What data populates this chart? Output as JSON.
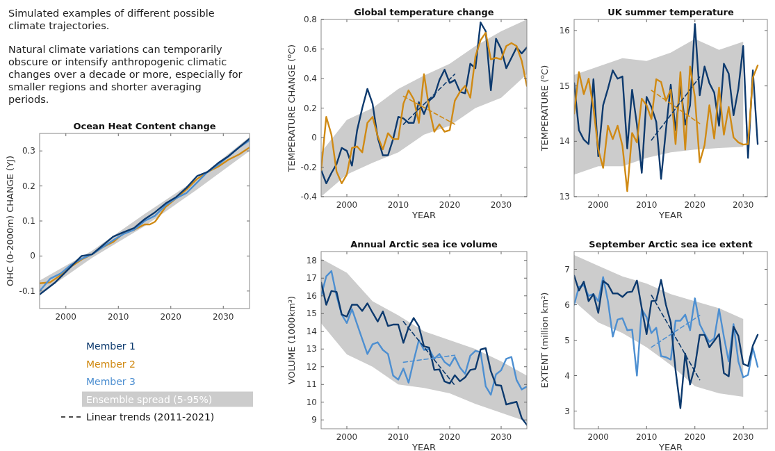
{
  "chart_data": [
    {
      "type": "other",
      "annotations": [
        "Simulated examples of different possible climate trajectories.",
        "Natural climate variations can temporarily obscure or intensify anthropogenic climatic changes over a decade or more, especially for smaller regions and shorter averaging periods."
      ]
    },
    {
      "type": "line",
      "title": "Ocean Heat Content change",
      "ylabel": "OHC (0-2000m) CHANGE  (YJ)",
      "xlim": [
        1995,
        2035
      ],
      "xticks": [
        2000,
        2010,
        2020,
        2030
      ],
      "ylim": [
        -0.15,
        0.35
      ],
      "yticks": [
        -0.1,
        0,
        0.1,
        0.2,
        0.3
      ],
      "line_style": "solid",
      "series": [
        {
          "color": "#cccccc",
          "x": [
            1995,
            2005,
            2015,
            2025,
            2035
          ],
          "values": [
            null,
            null,
            null,
            null,
            null
          ],
          "lower": [
            -0.11,
            -0.005,
            0.085,
            0.19,
            0.3
          ],
          "upper": [
            -0.07,
            0.015,
            0.12,
            0.22,
            0.34
          ]
        },
        {
          "color": "#d08a14",
          "x": [
            1995,
            1997,
            1999,
            2001,
            2003,
            2005,
            2007,
            2009,
            2011,
            2013,
            2015,
            2016,
            2017,
            2019,
            2021,
            2023,
            2025,
            2027,
            2029,
            2031,
            2033,
            2035
          ],
          "values": [
            -0.078,
            -0.075,
            -0.055,
            -0.03,
            -0.01,
            0.005,
            0.025,
            0.04,
            0.065,
            0.075,
            0.09,
            0.09,
            0.098,
            0.14,
            0.165,
            0.19,
            0.22,
            0.24,
            0.255,
            0.275,
            0.29,
            0.31
          ]
        },
        {
          "color": "#4d8fd1",
          "x": [
            1995,
            1997,
            1999,
            2001,
            2003,
            2005,
            2007,
            2009,
            2011,
            2013,
            2015,
            2017,
            2019,
            2021,
            2023,
            2025,
            2027,
            2029,
            2031,
            2033,
            2035
          ],
          "values": [
            -0.1,
            -0.065,
            -0.05,
            -0.025,
            -0.008,
            0.005,
            0.025,
            0.045,
            0.063,
            0.075,
            0.1,
            0.115,
            0.145,
            0.165,
            0.18,
            0.21,
            0.24,
            0.26,
            0.285,
            0.31,
            0.33
          ]
        },
        {
          "color": "#0d3a6e",
          "x": [
            1995,
            1998,
            2000,
            2002,
            2003,
            2005,
            2007,
            2009,
            2011,
            2013,
            2015,
            2017,
            2019,
            2021,
            2023,
            2025,
            2027,
            2029,
            2031,
            2033,
            2035
          ],
          "values": [
            -0.11,
            -0.075,
            -0.045,
            -0.015,
            0.0,
            0.005,
            0.03,
            0.055,
            0.068,
            0.08,
            0.105,
            0.125,
            0.15,
            0.168,
            0.195,
            0.228,
            0.24,
            0.265,
            0.285,
            0.31,
            0.335
          ]
        }
      ]
    },
    {
      "type": "line",
      "title": "Global temperature change",
      "xlabel": "YEAR",
      "ylabel": "TEMPERATURE CHANGE  ($^{o}$C)",
      "xlim": [
        1995,
        2035
      ],
      "xticks": [
        2000,
        2010,
        2020,
        2030
      ],
      "ylim": [
        -0.4,
        0.8
      ],
      "yticks": [
        -0.4,
        -0.2,
        0,
        0.2,
        0.4,
        0.6,
        0.8
      ],
      "line_style": "solid",
      "x": [
        1995,
        1996,
        1997,
        1998,
        1999,
        2000,
        2001,
        2002,
        2003,
        2004,
        2005,
        2006,
        2007,
        2008,
        2009,
        2010,
        2011,
        2012,
        2013,
        2014,
        2015,
        2016,
        2017,
        2018,
        2019,
        2020,
        2021,
        2022,
        2023,
        2024,
        2025,
        2026,
        2027,
        2028,
        2029,
        2030,
        2031,
        2032,
        2033,
        2034,
        2035
      ],
      "series": [
        {
          "color": "#cccccc",
          "x": [
            1995,
            2000,
            2005,
            2010,
            2015,
            2020,
            2025,
            2030,
            2035
          ],
          "values": [
            null,
            null,
            null,
            null,
            null,
            null,
            null,
            null,
            null
          ],
          "lower": [
            -0.4,
            -0.25,
            -0.17,
            -0.1,
            0.02,
            0.08,
            0.2,
            0.27,
            0.43
          ],
          "upper": [
            -0.1,
            0.12,
            0.2,
            0.33,
            0.42,
            0.5,
            0.62,
            0.72,
            0.8
          ]
        },
        {
          "color": "#0d3a6e",
          "values": [
            -0.22,
            -0.31,
            -0.24,
            -0.18,
            -0.07,
            -0.09,
            -0.19,
            0.05,
            0.2,
            0.33,
            0.23,
            0.0,
            -0.12,
            -0.12,
            -0.01,
            0.14,
            0.13,
            0.1,
            0.1,
            0.24,
            0.16,
            0.25,
            0.28,
            0.39,
            0.46,
            0.37,
            0.39,
            0.31,
            0.3,
            0.5,
            0.47,
            0.78,
            0.72,
            0.32,
            0.67,
            0.6,
            0.47,
            0.54,
            0.61,
            0.57,
            0.61
          ]
        },
        {
          "color": "#d08a14",
          "values": [
            -0.22,
            0.14,
            0.02,
            -0.23,
            -0.31,
            -0.25,
            -0.07,
            -0.06,
            -0.1,
            0.1,
            0.14,
            0.01,
            -0.08,
            0.03,
            -0.01,
            -0.01,
            0.23,
            0.32,
            0.26,
            0.1,
            0.43,
            0.2,
            0.04,
            0.09,
            0.04,
            0.05,
            0.25,
            0.31,
            0.35,
            0.27,
            0.55,
            0.66,
            0.71,
            0.53,
            0.54,
            0.53,
            0.62,
            0.64,
            0.62,
            0.52,
            0.35
          ]
        },
        {
          "type": "line",
          "line_style": "dashed",
          "color": "#0d3a6e",
          "x": [
            2011,
            2021
          ],
          "values": [
            0.09,
            0.43
          ]
        },
        {
          "type": "line",
          "line_style": "dashed",
          "color": "#d08a14",
          "x": [
            2011,
            2021
          ],
          "values": [
            0.28,
            0.09
          ]
        }
      ]
    },
    {
      "type": "line",
      "title": "UK summer temperature",
      "xlabel": "YEAR",
      "ylabel": "TEMPERATURE  ($^{o}$C)",
      "xlim": [
        1995,
        2035
      ],
      "xticks": [
        2000,
        2010,
        2020,
        2030
      ],
      "ylim": [
        13,
        16.2
      ],
      "yticks": [
        13,
        14,
        15,
        16
      ],
      "line_style": "solid",
      "x": [
        1995,
        1996,
        1997,
        1998,
        1999,
        2000,
        2001,
        2002,
        2003,
        2004,
        2005,
        2006,
        2007,
        2008,
        2009,
        2010,
        2011,
        2012,
        2013,
        2014,
        2015,
        2016,
        2017,
        2018,
        2019,
        2020,
        2021,
        2022,
        2023,
        2024,
        2025,
        2026,
        2027,
        2028,
        2029,
        2030,
        2031,
        2032,
        2033
      ],
      "series": [
        {
          "color": "#cccccc",
          "x": [
            1995,
            2000,
            2005,
            2010,
            2015,
            2020,
            2025,
            2030
          ],
          "values": [
            null,
            null,
            null,
            null,
            null,
            null,
            null,
            null
          ],
          "lower": [
            13.4,
            13.55,
            13.55,
            13.7,
            13.8,
            13.85,
            13.88,
            13.9
          ],
          "upper": [
            15.2,
            15.35,
            15.5,
            15.45,
            15.6,
            15.85,
            15.65,
            15.8
          ]
        },
        {
          "color": "#0d3a6e",
          "values": [
            15.05,
            14.2,
            14.03,
            13.95,
            15.12,
            13.73,
            14.65,
            14.95,
            15.28,
            15.13,
            15.17,
            13.87,
            14.93,
            14.3,
            13.43,
            14.8,
            14.62,
            14.35,
            13.32,
            14.2,
            15.02,
            14.2,
            15.0,
            14.3,
            14.65,
            16.12,
            14.83,
            15.35,
            15.05,
            14.88,
            14.28,
            15.4,
            15.22,
            14.47,
            14.95,
            15.72,
            13.7,
            15.28,
            13.95
          ]
        },
        {
          "color": "#d08a14",
          "values": [
            14.5,
            15.25,
            14.85,
            15.13,
            14.6,
            13.85,
            13.52,
            14.28,
            14.04,
            14.28,
            13.92,
            13.1,
            14.15,
            13.98,
            14.77,
            14.65,
            14.4,
            15.12,
            15.07,
            14.73,
            14.93,
            13.95,
            15.25,
            13.85,
            15.35,
            14.8,
            13.62,
            13.93,
            14.65,
            14.05,
            14.97,
            14.12,
            14.62,
            14.07,
            13.98,
            13.94,
            13.95,
            15.15,
            15.37
          ]
        },
        {
          "type": "line",
          "line_style": "dashed",
          "color": "#0d3a6e",
          "x": [
            2011,
            2021
          ],
          "values": [
            14.02,
            15.16
          ]
        },
        {
          "type": "line",
          "line_style": "dashed",
          "color": "#d08a14",
          "x": [
            2011,
            2021
          ],
          "values": [
            14.92,
            14.32
          ]
        }
      ]
    },
    {
      "type": "line",
      "title": "Annual Arctic sea ice volume",
      "xlabel": "YEAR",
      "ylabel": "VOLUME  (1000km³)",
      "xlim": [
        1995,
        2035
      ],
      "xticks": [
        2000,
        2010,
        2020,
        2030
      ],
      "ylim": [
        8.5,
        18.5
      ],
      "yticks": [
        9,
        10,
        11,
        12,
        13,
        14,
        15,
        16,
        17,
        18
      ],
      "line_style": "solid",
      "x": [
        1995,
        1996,
        1997,
        1998,
        1999,
        2000,
        2001,
        2002,
        2003,
        2004,
        2005,
        2006,
        2007,
        2008,
        2009,
        2010,
        2011,
        2012,
        2013,
        2014,
        2015,
        2016,
        2017,
        2018,
        2019,
        2020,
        2021,
        2022,
        2023,
        2024,
        2025,
        2026,
        2027,
        2028,
        2029,
        2030,
        2031,
        2032,
        2033,
        2034,
        2035
      ],
      "series": [
        {
          "color": "#cccccc",
          "x": [
            1995,
            2000,
            2005,
            2010,
            2015,
            2020,
            2025,
            2030,
            2035
          ],
          "values": [
            null,
            null,
            null,
            null,
            null,
            null,
            null,
            null,
            null
          ],
          "lower": [
            14.45,
            12.7,
            12.0,
            11.0,
            10.8,
            10.5,
            9.9,
            9.4,
            8.9
          ],
          "upper": [
            18.1,
            17.3,
            15.7,
            14.9,
            14.0,
            13.5,
            13.0,
            12.3,
            11.5
          ]
        },
        {
          "color": "#4d8fd1",
          "values": [
            16.0,
            17.1,
            17.4,
            16.0,
            14.95,
            14.47,
            15.25,
            14.4,
            13.55,
            12.72,
            13.27,
            13.38,
            12.95,
            12.72,
            11.5,
            11.27,
            11.9,
            11.1,
            12.35,
            13.5,
            12.95,
            13.0,
            12.45,
            12.72,
            12.27,
            12.05,
            12.55,
            11.95,
            11.6,
            12.62,
            12.9,
            12.82,
            10.9,
            10.42,
            11.57,
            11.8,
            12.45,
            12.55,
            11.25,
            10.72,
            10.88
          ]
        },
        {
          "color": "#0d3a6e",
          "values": [
            16.75,
            15.5,
            16.28,
            16.22,
            14.95,
            14.83,
            15.5,
            15.5,
            15.15,
            15.58,
            15.05,
            14.55,
            15.12,
            14.3,
            14.38,
            14.38,
            13.35,
            14.22,
            14.75,
            14.28,
            13.15,
            13.08,
            11.82,
            11.85,
            11.17,
            11.05,
            11.52,
            11.18,
            11.4,
            11.82,
            11.88,
            12.97,
            13.05,
            11.75,
            10.97,
            10.93,
            9.87,
            9.95,
            10.02,
            9.1,
            8.72
          ]
        },
        {
          "type": "line",
          "line_style": "dashed",
          "color": "#0d3a6e",
          "x": [
            2011,
            2021
          ],
          "values": [
            14.55,
            10.95
          ]
        },
        {
          "type": "line",
          "line_style": "dashed",
          "color": "#4d8fd1",
          "x": [
            2011,
            2021
          ],
          "values": [
            12.25,
            12.65
          ]
        }
      ]
    },
    {
      "type": "line",
      "title": "September Arctic sea ice extent",
      "xlabel": "YEAR",
      "ylabel": "EXTENT  (million km²)",
      "xlim": [
        1995,
        2035
      ],
      "xticks": [
        2000,
        2010,
        2020,
        2030
      ],
      "ylim": [
        2.5,
        7.5
      ],
      "yticks": [
        3,
        4,
        5,
        6,
        7
      ],
      "line_style": "solid",
      "x": [
        1995,
        1996,
        1997,
        1998,
        1999,
        2000,
        2001,
        2002,
        2003,
        2004,
        2005,
        2006,
        2007,
        2008,
        2009,
        2010,
        2011,
        2012,
        2013,
        2014,
        2015,
        2016,
        2017,
        2018,
        2019,
        2020,
        2021,
        2022,
        2023,
        2024,
        2025,
        2026,
        2027,
        2028,
        2029,
        2030,
        2031,
        2032,
        2033
      ],
      "series": [
        {
          "color": "#cccccc",
          "x": [
            1995,
            2000,
            2005,
            2010,
            2015,
            2020,
            2025,
            2030
          ],
          "values": [
            null,
            null,
            null,
            null,
            null,
            null,
            null,
            null
          ],
          "lower": [
            6.1,
            5.5,
            5.2,
            4.8,
            4.3,
            3.7,
            3.5,
            3.4
          ],
          "upper": [
            7.4,
            7.1,
            6.8,
            6.6,
            6.3,
            6.1,
            5.9,
            5.6
          ]
        },
        {
          "color": "#4d8fd1",
          "values": [
            6.0,
            6.5,
            6.55,
            6.25,
            6.3,
            6.1,
            6.78,
            6.1,
            5.1,
            5.58,
            5.62,
            5.28,
            5.3,
            4.0,
            5.87,
            5.65,
            5.2,
            5.35,
            4.55,
            4.52,
            4.45,
            5.55,
            5.55,
            5.72,
            5.28,
            6.18,
            5.45,
            5.18,
            4.95,
            5.05,
            5.88,
            5.1,
            4.4,
            5.45,
            4.4,
            3.95,
            4.02,
            4.78,
            4.25
          ]
        },
        {
          "color": "#0d3a6e",
          "values": [
            6.82,
            6.4,
            6.65,
            6.1,
            6.3,
            5.77,
            6.67,
            6.57,
            6.32,
            6.32,
            6.22,
            6.35,
            6.37,
            6.68,
            5.9,
            5.17,
            6.1,
            6.12,
            6.7,
            6.0,
            5.5,
            4.15,
            3.08,
            4.62,
            3.75,
            4.25,
            5.15,
            5.15,
            4.8,
            4.98,
            5.17,
            4.07,
            3.98,
            5.38,
            5.12,
            4.33,
            4.27,
            4.85,
            5.15
          ]
        },
        {
          "type": "line",
          "line_style": "dashed",
          "color": "#0d3a6e",
          "x": [
            2011,
            2021
          ],
          "values": [
            6.27,
            3.88
          ]
        },
        {
          "type": "line",
          "line_style": "dashed",
          "color": "#4d8fd1",
          "x": [
            2011,
            2021
          ],
          "values": [
            4.8,
            5.7
          ]
        }
      ]
    },
    {
      "type": "other",
      "annotations": [
        "Member 1",
        "Member 2",
        "Member 3",
        "Ensemble spread (5-95%)",
        "Linear trends (2011-2021)"
      ],
      "colors": [
        "#0d3a6e",
        "#d08a14",
        "#4d8fd1",
        "#cccccc",
        "#111111"
      ]
    }
  ]
}
